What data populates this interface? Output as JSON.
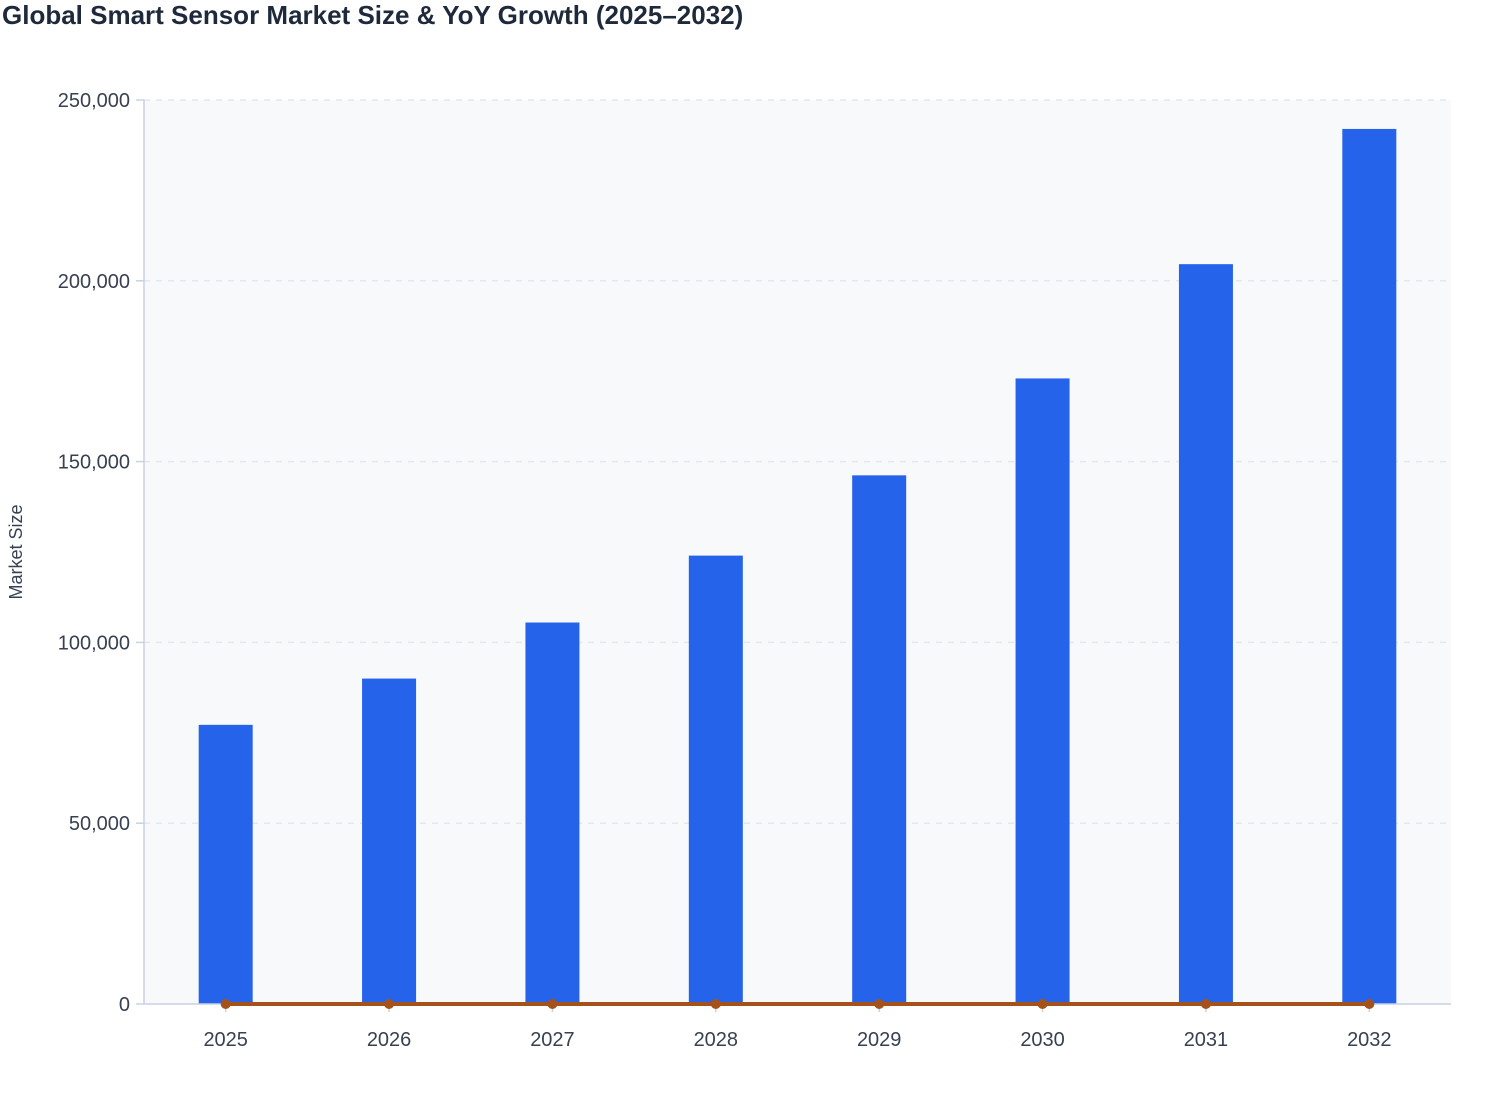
{
  "chart_data": {
    "type": "bar",
    "title": "Global Smart Sensor Market Size & YoY Growth (2025–2032)",
    "ylabel": "Market Size",
    "xlabel": "",
    "categories": [
      "2025",
      "2026",
      "2027",
      "2028",
      "2029",
      "2030",
      "2031",
      "2032"
    ],
    "series": [
      {
        "type": "bar",
        "values": [
          77200,
          90000,
          105500,
          124000,
          146200,
          173000,
          204600,
          242000
        ]
      },
      {
        "type": "line",
        "values": [
          0,
          0,
          0,
          0,
          0,
          0,
          0,
          0
        ]
      }
    ],
    "yticks": [
      "0",
      "50,000",
      "100,000",
      "150,000",
      "200,000",
      "250,000"
    ],
    "ylim": [
      0,
      250000
    ],
    "grid": true,
    "colors": {
      "bar": "#2563eb",
      "line": "#a5521a",
      "plot_bg": "#f8f9fb",
      "grid": "#e2e8f0",
      "axis": "#c7d2e5"
    }
  }
}
